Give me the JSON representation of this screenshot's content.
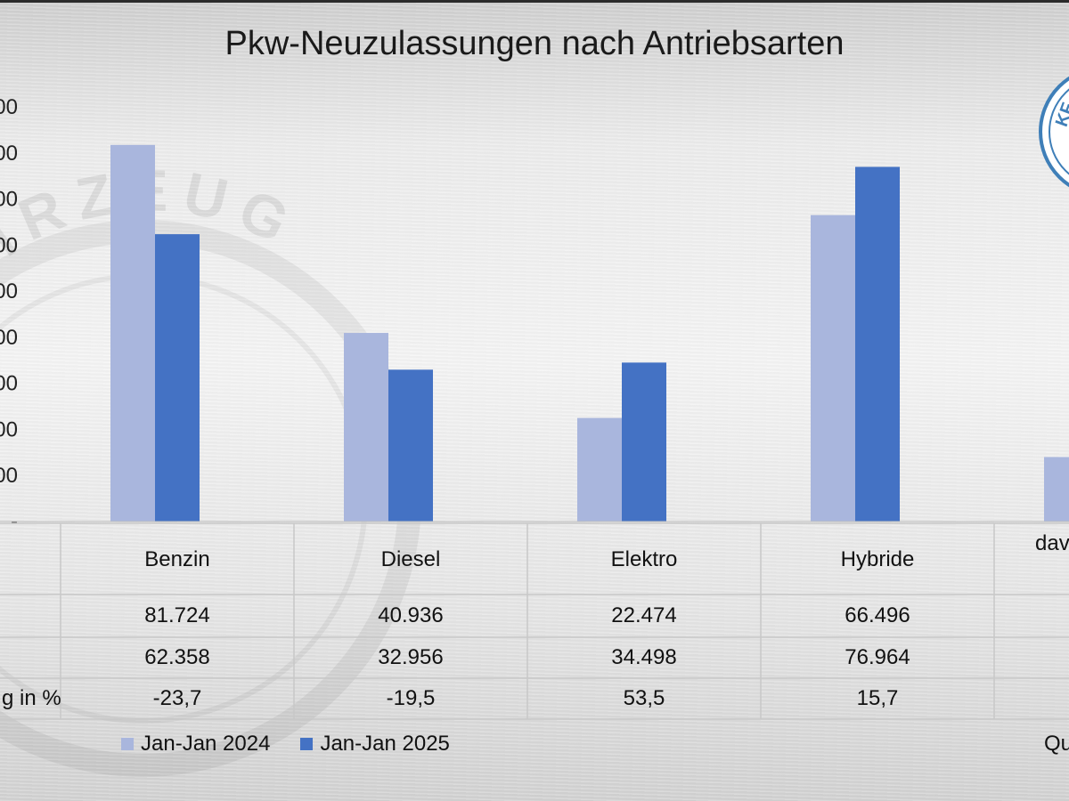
{
  "colors": {
    "series_2024": "#a9b6dd",
    "series_2025": "#4472c4",
    "grid": "#c8c8c8",
    "text": "#111111"
  },
  "watermark": {
    "text": "FAHRZEUG"
  },
  "logo": {
    "text": "KF"
  },
  "table": {
    "row_labels": [
      "",
      "",
      "",
      "g in %"
    ],
    "change_values": [
      "-23,7",
      "-19,5",
      "53,5",
      "15,7",
      ""
    ]
  },
  "legend": {
    "items": [
      "Jan-Jan 2024",
      "Jan-Jan 2025"
    ]
  },
  "source": {
    "label": "Qu"
  },
  "chart_data": {
    "type": "bar",
    "title": "Pkw-Neuzulassungen nach Antriebsarten",
    "categories": [
      "Benzin",
      "Diesel",
      "Elektro",
      "Hybride",
      "dav"
    ],
    "series": [
      {
        "name": "Jan-Jan 2024",
        "values": [
          81724,
          40936,
          22474,
          66496,
          14000
        ]
      },
      {
        "name": "Jan-Jan 2025",
        "values": [
          62358,
          32956,
          34498,
          76964,
          null
        ]
      }
    ],
    "display_values": [
      [
        "81.724",
        "40.936",
        "22.474",
        "66.496",
        ""
      ],
      [
        "62.358",
        "32.956",
        "34.498",
        "76.964",
        ""
      ]
    ],
    "tick_labels": [
      "-",
      "000",
      "000",
      "000",
      "000",
      "000",
      "000",
      "000",
      "000",
      "000"
    ],
    "ylim": [
      0,
      90000
    ],
    "ytick_step": 10000,
    "xlabel": "",
    "ylabel": "",
    "grid": false
  }
}
